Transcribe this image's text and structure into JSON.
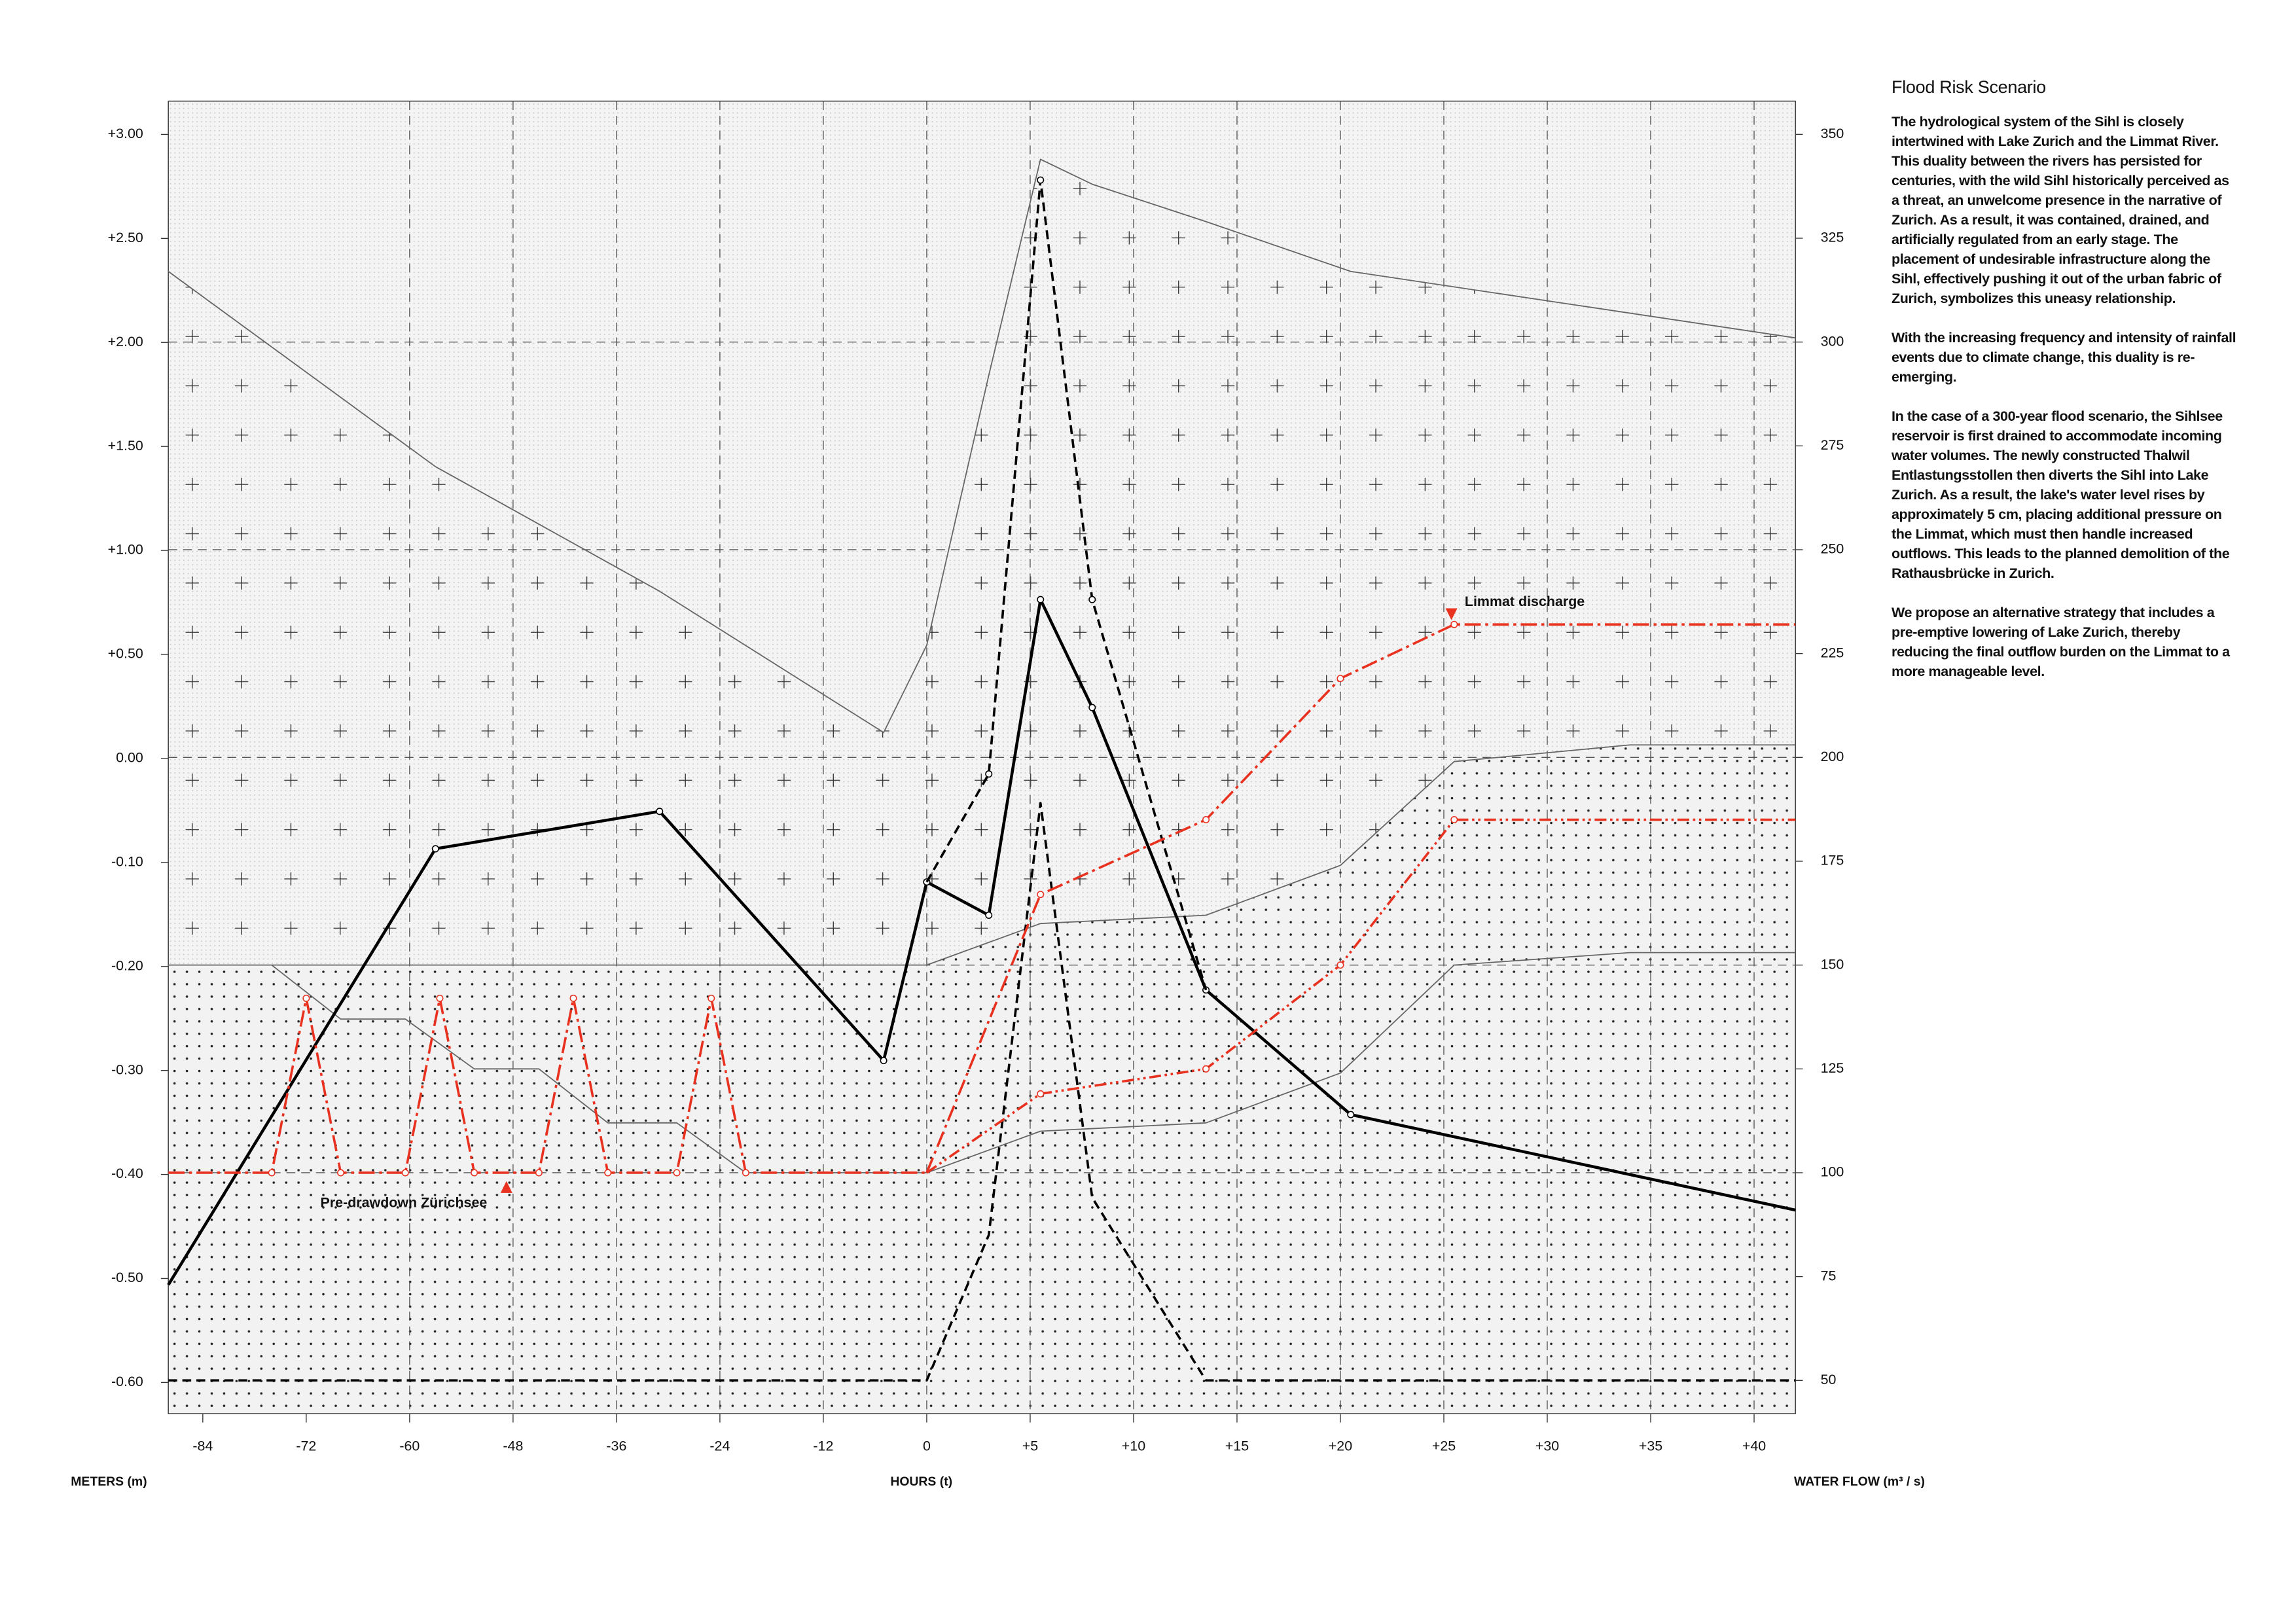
{
  "chart_data": {
    "type": "line",
    "xlabel": "HOURS (t)",
    "ylabel": "METERS (m)",
    "y2label": "WATER FLOW (m³ / s)",
    "xlim": [
      -88,
      42
    ],
    "xticks": [
      -84,
      -72,
      -60,
      -48,
      -36,
      -24,
      -12,
      0,
      {
        "value": 5,
        "label": "+5"
      },
      {
        "value": 10,
        "label": "+10"
      },
      {
        "value": 15,
        "label": "+15"
      },
      {
        "value": 20,
        "label": "+20"
      },
      {
        "value": 25,
        "label": "+25"
      },
      {
        "value": 30,
        "label": "+30"
      },
      {
        "value": 35,
        "label": "+35"
      },
      {
        "value": 40,
        "label": "+40"
      }
    ],
    "ylim": [
      -0.63,
      3.16
    ],
    "yticks": [
      {
        "value": 3,
        "label": "+3.00"
      },
      {
        "value": 2.5,
        "label": "+2.50"
      },
      {
        "value": 2,
        "label": "+2.00"
      },
      {
        "value": 1.5,
        "label": "+1.50"
      },
      {
        "value": 1,
        "label": "+1.00"
      },
      {
        "value": 0.5,
        "label": "+0.50"
      },
      {
        "value": 0,
        "label": "0.00"
      },
      {
        "value": -0.1,
        "label": "-0.10"
      },
      {
        "value": -0.2,
        "label": "-0.20"
      },
      {
        "value": -0.3,
        "label": "-0.30"
      },
      {
        "value": -0.4,
        "label": "-0.40"
      },
      {
        "value": -0.5,
        "label": "-0.50"
      },
      {
        "value": -0.6,
        "label": "-0.60"
      }
    ],
    "y2lim": [
      42,
      358
    ],
    "y2ticks": [
      350,
      325,
      300,
      275,
      250,
      225,
      200,
      175,
      150,
      125,
      100,
      75,
      50
    ],
    "grid": true,
    "series": [
      {
        "axis": "y2",
        "color": "#666666",
        "style": "solid",
        "width": 0.8,
        "fill": "plus",
        "x": [
          -88,
          -57,
          -31,
          -5,
          0,
          3,
          5.5,
          8,
          13.5,
          20.5,
          42
        ],
        "values": [
          317,
          270,
          240,
          206,
          227,
          292,
          344,
          338,
          329,
          317,
          301
        ]
      },
      {
        "axis": "y2",
        "color": "#666666",
        "style": "solid",
        "width": 0.8,
        "fill": "dots",
        "x": [
          -88,
          0,
          5.5,
          13.5,
          20,
          25.5,
          34,
          42
        ],
        "values": [
          150,
          150,
          160,
          162,
          174,
          199,
          203,
          203
        ]
      },
      {
        "axis": "y2",
        "color": "#666666",
        "style": "solid",
        "width": 0.8,
        "x": [
          -76,
          -68,
          -60.5,
          -52.5,
          -45,
          -37,
          -29,
          -21,
          0,
          5.5,
          13.5,
          20,
          25.5,
          34,
          42
        ],
        "values": [
          150,
          137,
          137,
          125,
          125,
          112,
          112,
          100,
          100,
          110,
          112,
          124,
          150,
          153,
          153
        ]
      },
      {
        "axis": "y2",
        "color": "#000000",
        "style": "solid",
        "width": 2,
        "markers": true,
        "x": [
          -88,
          -57,
          -31,
          -5,
          0,
          3,
          5.5,
          8,
          13.5,
          20.5,
          42
        ],
        "values": [
          73,
          178,
          187,
          127,
          170,
          162,
          238,
          212,
          144,
          114,
          91
        ]
      },
      {
        "axis": "y2",
        "color": "#000000",
        "style": "dashed",
        "width": 1.6,
        "markers": true,
        "x": [
          0,
          3,
          5.5,
          8,
          13.5
        ],
        "values": [
          170,
          196,
          339,
          238,
          144
        ]
      },
      {
        "axis": "y2",
        "color": "#000000",
        "style": "dashed",
        "width": 1.6,
        "x": [
          -88,
          0,
          3,
          5.5,
          8,
          13.5,
          42
        ],
        "values": [
          50,
          50,
          85,
          189,
          94,
          50,
          50
        ]
      },
      {
        "axis": "y2",
        "color": "#e8311f",
        "style": "dash-dot",
        "width": 1.6,
        "markers": true,
        "x": [
          0,
          5.5,
          13.5,
          20,
          25.5,
          42
        ],
        "values": [
          100,
          167,
          185,
          219,
          232,
          232
        ]
      },
      {
        "axis": "y2",
        "color": "#e8311f",
        "style": "dash-dot-dot",
        "width": 1.6,
        "markers": true,
        "x": [
          0,
          5.5,
          13.5,
          20,
          25.5,
          42
        ],
        "values": [
          100,
          119,
          125,
          150,
          185,
          185
        ]
      },
      {
        "axis": "y2",
        "color": "#e8311f",
        "style": "dash-dot",
        "width": 1.6,
        "markers": true,
        "x": [
          -88,
          -76,
          -72,
          -68,
          -60.5,
          -56.5,
          -52.5,
          -45,
          -41,
          -37,
          -29,
          -25,
          -21,
          0
        ],
        "values": [
          100,
          100,
          142,
          100,
          100,
          142,
          100,
          100,
          142,
          100,
          100,
          142,
          100,
          100
        ]
      }
    ],
    "annotations": [
      {
        "text": "Limmat discharge",
        "color": "#e8311f"
      },
      {
        "text": "Pre-drawdown Zürichsee",
        "color": "#e8311f"
      }
    ]
  },
  "sidebar": {
    "title": "Flood Risk Scenario",
    "paragraphs": [
      "The hydrological system of the Sihl is closely intertwined with Lake Zurich and the Limmat River. This duality between the rivers has persisted for centuries, with the wild Sihl historically perceived as a threat, an unwelcome presence in the narrative of Zurich. As a result, it was contained, drained, and artificially regulated from an early stage. The placement of undesirable infrastructure along the Sihl, effectively pushing it out of the urban fabric of Zurich, symbolizes this uneasy relationship.",
      "With the increasing frequency and intensity of rainfall events due to climate change, this duality is re-emerging.",
      "In the case of a 300-year flood scenario, the Sihlsee reservoir is first drained to accommodate incoming water volumes. The newly constructed Thalwil Entlastungsstollen then diverts the Sihl into Lake Zurich. As a result, the lake's water level rises by approximately 5 cm, placing additional pressure on the Limmat, which must then handle increased outflows. This leads to the planned demolition of the Rathausbrücke in Zurich.",
      "We propose an alternative strategy that includes a pre-emptive lowering of Lake Zurich, thereby reducing the final outflow burden on the Limmat to a more manageable level."
    ]
  }
}
